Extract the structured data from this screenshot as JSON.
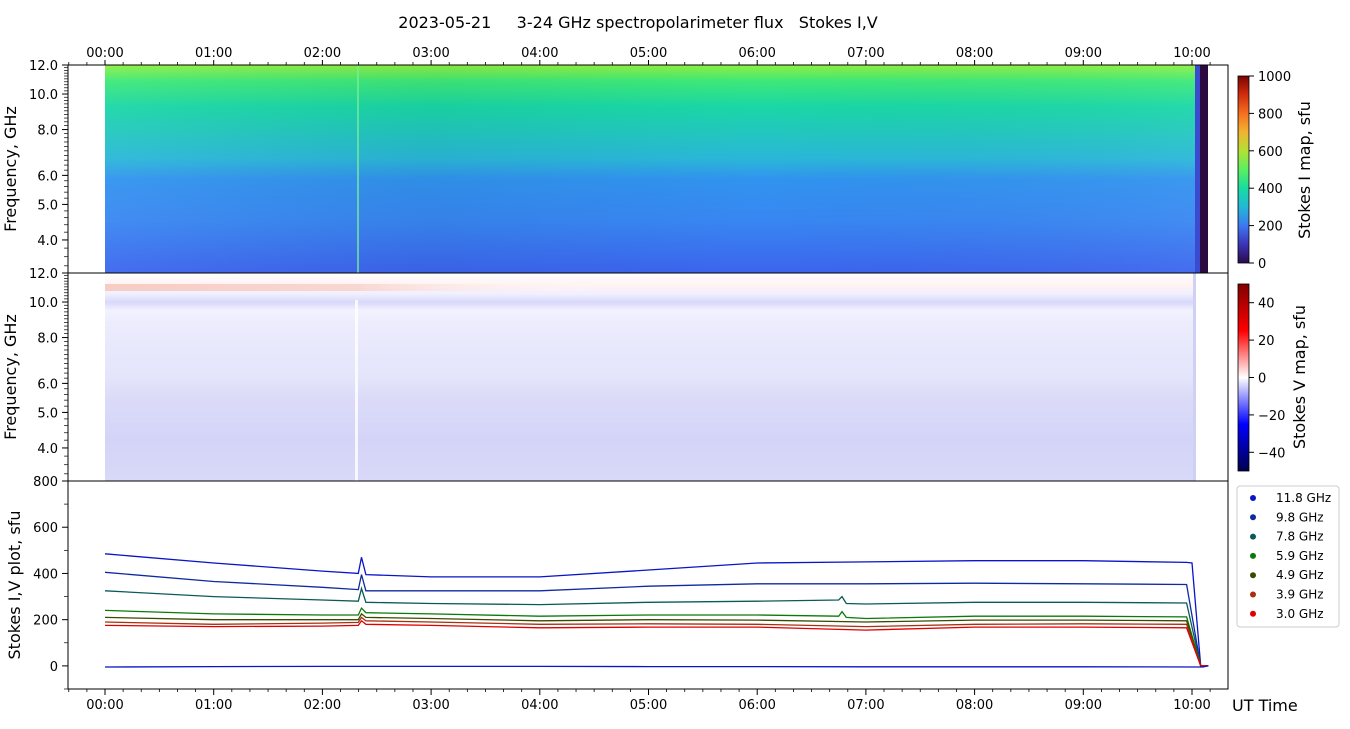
{
  "title": "2023-05-21     3-24 GHz spectropolarimeter flux   Stokes I,V",
  "time_ticks": [
    "00:00",
    "01:00",
    "02:00",
    "03:00",
    "04:00",
    "05:00",
    "06:00",
    "07:00",
    "08:00",
    "09:00",
    "10:00"
  ],
  "x_axis_label": "UT Time",
  "chart_data": [
    {
      "type": "heatmap",
      "name_panel": "stokes-i-map",
      "ylabel": "Frequency, GHz",
      "yticks": [
        "12.0",
        "10.0",
        "8.0",
        "6.0",
        "5.0",
        "4.0"
      ],
      "colorbar_label": "Stokes I map, sfu",
      "colorbar_ticks": [
        "0",
        "200",
        "400",
        "600",
        "800",
        "1000"
      ],
      "colorbar_range": [
        0,
        1000
      ],
      "colorscale": "rainbow"
    },
    {
      "type": "heatmap",
      "name_panel": "stokes-v-map",
      "ylabel": "Frequency, GHz",
      "yticks": [
        "12.0",
        "10.0",
        "8.0",
        "6.0",
        "5.0",
        "4.0"
      ],
      "colorbar_label": "Stokes V map, sfu",
      "colorbar_ticks": [
        "40",
        "20",
        "0",
        "−20",
        "−40"
      ],
      "colorbar_range": [
        -50,
        50
      ],
      "colorscale": "seismic"
    },
    {
      "type": "line",
      "name_panel": "stokes-iv-plot",
      "ylabel": "Stokes I,V plot, sfu",
      "yticks": [
        "800",
        "600",
        "400",
        "200",
        "0"
      ],
      "ylim": [
        -100,
        800
      ],
      "xlim_hours": [
        -0.33,
        10.3
      ],
      "series": [
        {
          "name": "11.8 GHz",
          "color": "#0a14c8",
          "points": [
            [
              0,
              485
            ],
            [
              1,
              445
            ],
            [
              2,
              410
            ],
            [
              2.33,
              400
            ],
            [
              2.36,
              470
            ],
            [
              2.4,
              395
            ],
            [
              3,
              385
            ],
            [
              4,
              385
            ],
            [
              5,
              415
            ],
            [
              6,
              445
            ],
            [
              7,
              450
            ],
            [
              8,
              455
            ],
            [
              9,
              455
            ],
            [
              9.95,
              448
            ],
            [
              10.0,
              445
            ],
            [
              10.08,
              0
            ],
            [
              10.15,
              0
            ]
          ]
        },
        {
          "name": "9.8 GHz",
          "color": "#0f2aa0",
          "points": [
            [
              0,
              405
            ],
            [
              1,
              365
            ],
            [
              2,
              340
            ],
            [
              2.33,
              330
            ],
            [
              2.36,
              395
            ],
            [
              2.4,
              325
            ],
            [
              3,
              325
            ],
            [
              4,
              325
            ],
            [
              5,
              345
            ],
            [
              6,
              355
            ],
            [
              7,
              355
            ],
            [
              8,
              358
            ],
            [
              9,
              355
            ],
            [
              9.95,
              352
            ],
            [
              10.08,
              0
            ],
            [
              10.15,
              0
            ]
          ]
        },
        {
          "name": "7.8 GHz",
          "color": "#0a5a5a",
          "points": [
            [
              0,
              325
            ],
            [
              1,
              300
            ],
            [
              2,
              285
            ],
            [
              2.33,
              280
            ],
            [
              2.36,
              335
            ],
            [
              2.4,
              275
            ],
            [
              3,
              270
            ],
            [
              4,
              265
            ],
            [
              5,
              275
            ],
            [
              6,
              280
            ],
            [
              6.75,
              285
            ],
            [
              6.78,
              300
            ],
            [
              6.82,
              270
            ],
            [
              7,
              268
            ],
            [
              8,
              275
            ],
            [
              9,
              275
            ],
            [
              9.95,
              272
            ],
            [
              10.08,
              0
            ],
            [
              10.15,
              0
            ]
          ]
        },
        {
          "name": "5.9 GHz",
          "color": "#0a7a0a",
          "points": [
            [
              0,
              240
            ],
            [
              1,
              225
            ],
            [
              2,
              220
            ],
            [
              2.33,
              220
            ],
            [
              2.36,
              250
            ],
            [
              2.4,
              230
            ],
            [
              3,
              225
            ],
            [
              4,
              215
            ],
            [
              5,
              220
            ],
            [
              6,
              220
            ],
            [
              6.75,
              215
            ],
            [
              6.78,
              235
            ],
            [
              6.82,
              210
            ],
            [
              7,
              205
            ],
            [
              8,
              215
            ],
            [
              9,
              215
            ],
            [
              9.95,
              212
            ],
            [
              10.08,
              0
            ],
            [
              10.15,
              0
            ]
          ]
        },
        {
          "name": "4.9 GHz",
          "color": "#3c4a00",
          "points": [
            [
              0,
              210
            ],
            [
              1,
              200
            ],
            [
              2,
              200
            ],
            [
              2.33,
              200
            ],
            [
              2.36,
              225
            ],
            [
              2.4,
              210
            ],
            [
              3,
              205
            ],
            [
              4,
              195
            ],
            [
              5,
              200
            ],
            [
              6,
              198
            ],
            [
              7,
              190
            ],
            [
              8,
              198
            ],
            [
              9,
              198
            ],
            [
              9.95,
              195
            ],
            [
              10.08,
              0
            ],
            [
              10.15,
              0
            ]
          ]
        },
        {
          "name": "3.9 GHz",
          "color": "#a83010",
          "points": [
            [
              0,
              190
            ],
            [
              1,
              180
            ],
            [
              2,
              185
            ],
            [
              2.33,
              188
            ],
            [
              2.36,
              210
            ],
            [
              2.4,
              195
            ],
            [
              3,
              190
            ],
            [
              4,
              180
            ],
            [
              5,
              182
            ],
            [
              6,
              180
            ],
            [
              7,
              170
            ],
            [
              8,
              180
            ],
            [
              9,
              182
            ],
            [
              9.95,
              180
            ],
            [
              10.08,
              0
            ],
            [
              10.15,
              0
            ]
          ]
        },
        {
          "name": "3.0 GHz",
          "color": "#e00000",
          "points": [
            [
              0,
              175
            ],
            [
              1,
              170
            ],
            [
              2,
              172
            ],
            [
              2.33,
              175
            ],
            [
              2.36,
              195
            ],
            [
              2.4,
              180
            ],
            [
              3,
              175
            ],
            [
              4,
              165
            ],
            [
              5,
              168
            ],
            [
              6,
              168
            ],
            [
              7,
              155
            ],
            [
              8,
              168
            ],
            [
              9,
              168
            ],
            [
              9.95,
              165
            ],
            [
              10.08,
              0
            ],
            [
              10.15,
              0
            ]
          ]
        },
        {
          "name": "stokes-v",
          "color": "#0a14c8",
          "points": [
            [
              0,
              -5
            ],
            [
              1,
              -3
            ],
            [
              2,
              -2
            ],
            [
              3,
              -2
            ],
            [
              4,
              -2
            ],
            [
              5,
              -3
            ],
            [
              6,
              -3
            ],
            [
              7,
              -4
            ],
            [
              8,
              -4
            ],
            [
              9,
              -4
            ],
            [
              10.1,
              -5
            ],
            [
              10.15,
              0
            ]
          ]
        }
      ]
    }
  ]
}
